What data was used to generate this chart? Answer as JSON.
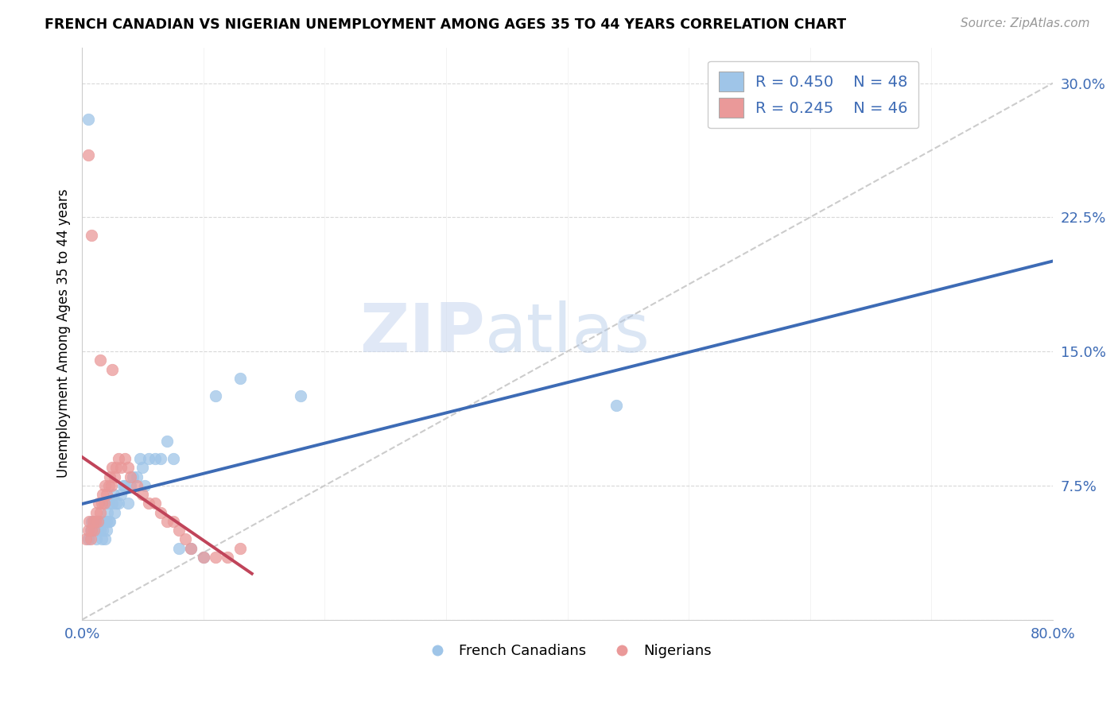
{
  "title": "FRENCH CANADIAN VS NIGERIAN UNEMPLOYMENT AMONG AGES 35 TO 44 YEARS CORRELATION CHART",
  "source": "Source: ZipAtlas.com",
  "xlabel": "",
  "ylabel": "Unemployment Among Ages 35 to 44 years",
  "xlim": [
    0.0,
    0.8
  ],
  "ylim": [
    0.0,
    0.32
  ],
  "xticks": [
    0.0,
    0.1,
    0.2,
    0.3,
    0.4,
    0.5,
    0.6,
    0.7,
    0.8
  ],
  "xticklabels": [
    "0.0%",
    "",
    "",
    "",
    "",
    "",
    "",
    "",
    "80.0%"
  ],
  "yticks": [
    0.0,
    0.075,
    0.15,
    0.225,
    0.3
  ],
  "yticklabels": [
    "",
    "7.5%",
    "15.0%",
    "22.5%",
    "30.0%"
  ],
  "blue_color": "#9fc5e8",
  "pink_color": "#ea9999",
  "blue_line_color": "#3d6bb5",
  "pink_line_color": "#c0445a",
  "diag_line_color": "#cccccc",
  "legend_r_blue": "R = 0.450",
  "legend_n_blue": "N = 48",
  "legend_r_pink": "R = 0.245",
  "legend_n_pink": "N = 46",
  "watermark_zip": "ZIP",
  "watermark_atlas": "atlas",
  "blue_scatter_x": [
    0.005,
    0.007,
    0.008,
    0.01,
    0.01,
    0.012,
    0.013,
    0.014,
    0.015,
    0.015,
    0.016,
    0.017,
    0.018,
    0.019,
    0.02,
    0.02,
    0.021,
    0.022,
    0.022,
    0.023,
    0.025,
    0.026,
    0.027,
    0.028,
    0.03,
    0.032,
    0.034,
    0.035,
    0.038,
    0.04,
    0.042,
    0.045,
    0.048,
    0.05,
    0.052,
    0.055,
    0.06,
    0.065,
    0.07,
    0.075,
    0.08,
    0.09,
    0.1,
    0.11,
    0.13,
    0.18,
    0.44,
    0.005
  ],
  "blue_scatter_y": [
    0.045,
    0.05,
    0.055,
    0.05,
    0.055,
    0.045,
    0.05,
    0.055,
    0.05,
    0.055,
    0.045,
    0.05,
    0.055,
    0.045,
    0.05,
    0.055,
    0.06,
    0.055,
    0.065,
    0.055,
    0.065,
    0.07,
    0.06,
    0.065,
    0.065,
    0.07,
    0.075,
    0.075,
    0.065,
    0.075,
    0.08,
    0.08,
    0.09,
    0.085,
    0.075,
    0.09,
    0.09,
    0.09,
    0.1,
    0.09,
    0.04,
    0.04,
    0.035,
    0.125,
    0.135,
    0.125,
    0.12,
    0.28
  ],
  "pink_scatter_x": [
    0.003,
    0.005,
    0.006,
    0.007,
    0.008,
    0.009,
    0.01,
    0.011,
    0.012,
    0.013,
    0.014,
    0.015,
    0.016,
    0.017,
    0.018,
    0.019,
    0.02,
    0.022,
    0.023,
    0.024,
    0.025,
    0.027,
    0.028,
    0.03,
    0.032,
    0.035,
    0.038,
    0.04,
    0.045,
    0.05,
    0.055,
    0.06,
    0.065,
    0.07,
    0.075,
    0.08,
    0.085,
    0.09,
    0.1,
    0.11,
    0.12,
    0.13,
    0.005,
    0.008,
    0.015,
    0.025
  ],
  "pink_scatter_y": [
    0.045,
    0.05,
    0.055,
    0.045,
    0.05,
    0.055,
    0.05,
    0.055,
    0.06,
    0.055,
    0.065,
    0.06,
    0.065,
    0.07,
    0.065,
    0.075,
    0.07,
    0.075,
    0.08,
    0.075,
    0.085,
    0.08,
    0.085,
    0.09,
    0.085,
    0.09,
    0.085,
    0.08,
    0.075,
    0.07,
    0.065,
    0.065,
    0.06,
    0.055,
    0.055,
    0.05,
    0.045,
    0.04,
    0.035,
    0.035,
    0.035,
    0.04,
    0.26,
    0.215,
    0.145,
    0.14
  ],
  "blue_line_x0": 0.0,
  "blue_line_x1": 0.8,
  "pink_line_x0": 0.0,
  "pink_line_x1": 0.14
}
